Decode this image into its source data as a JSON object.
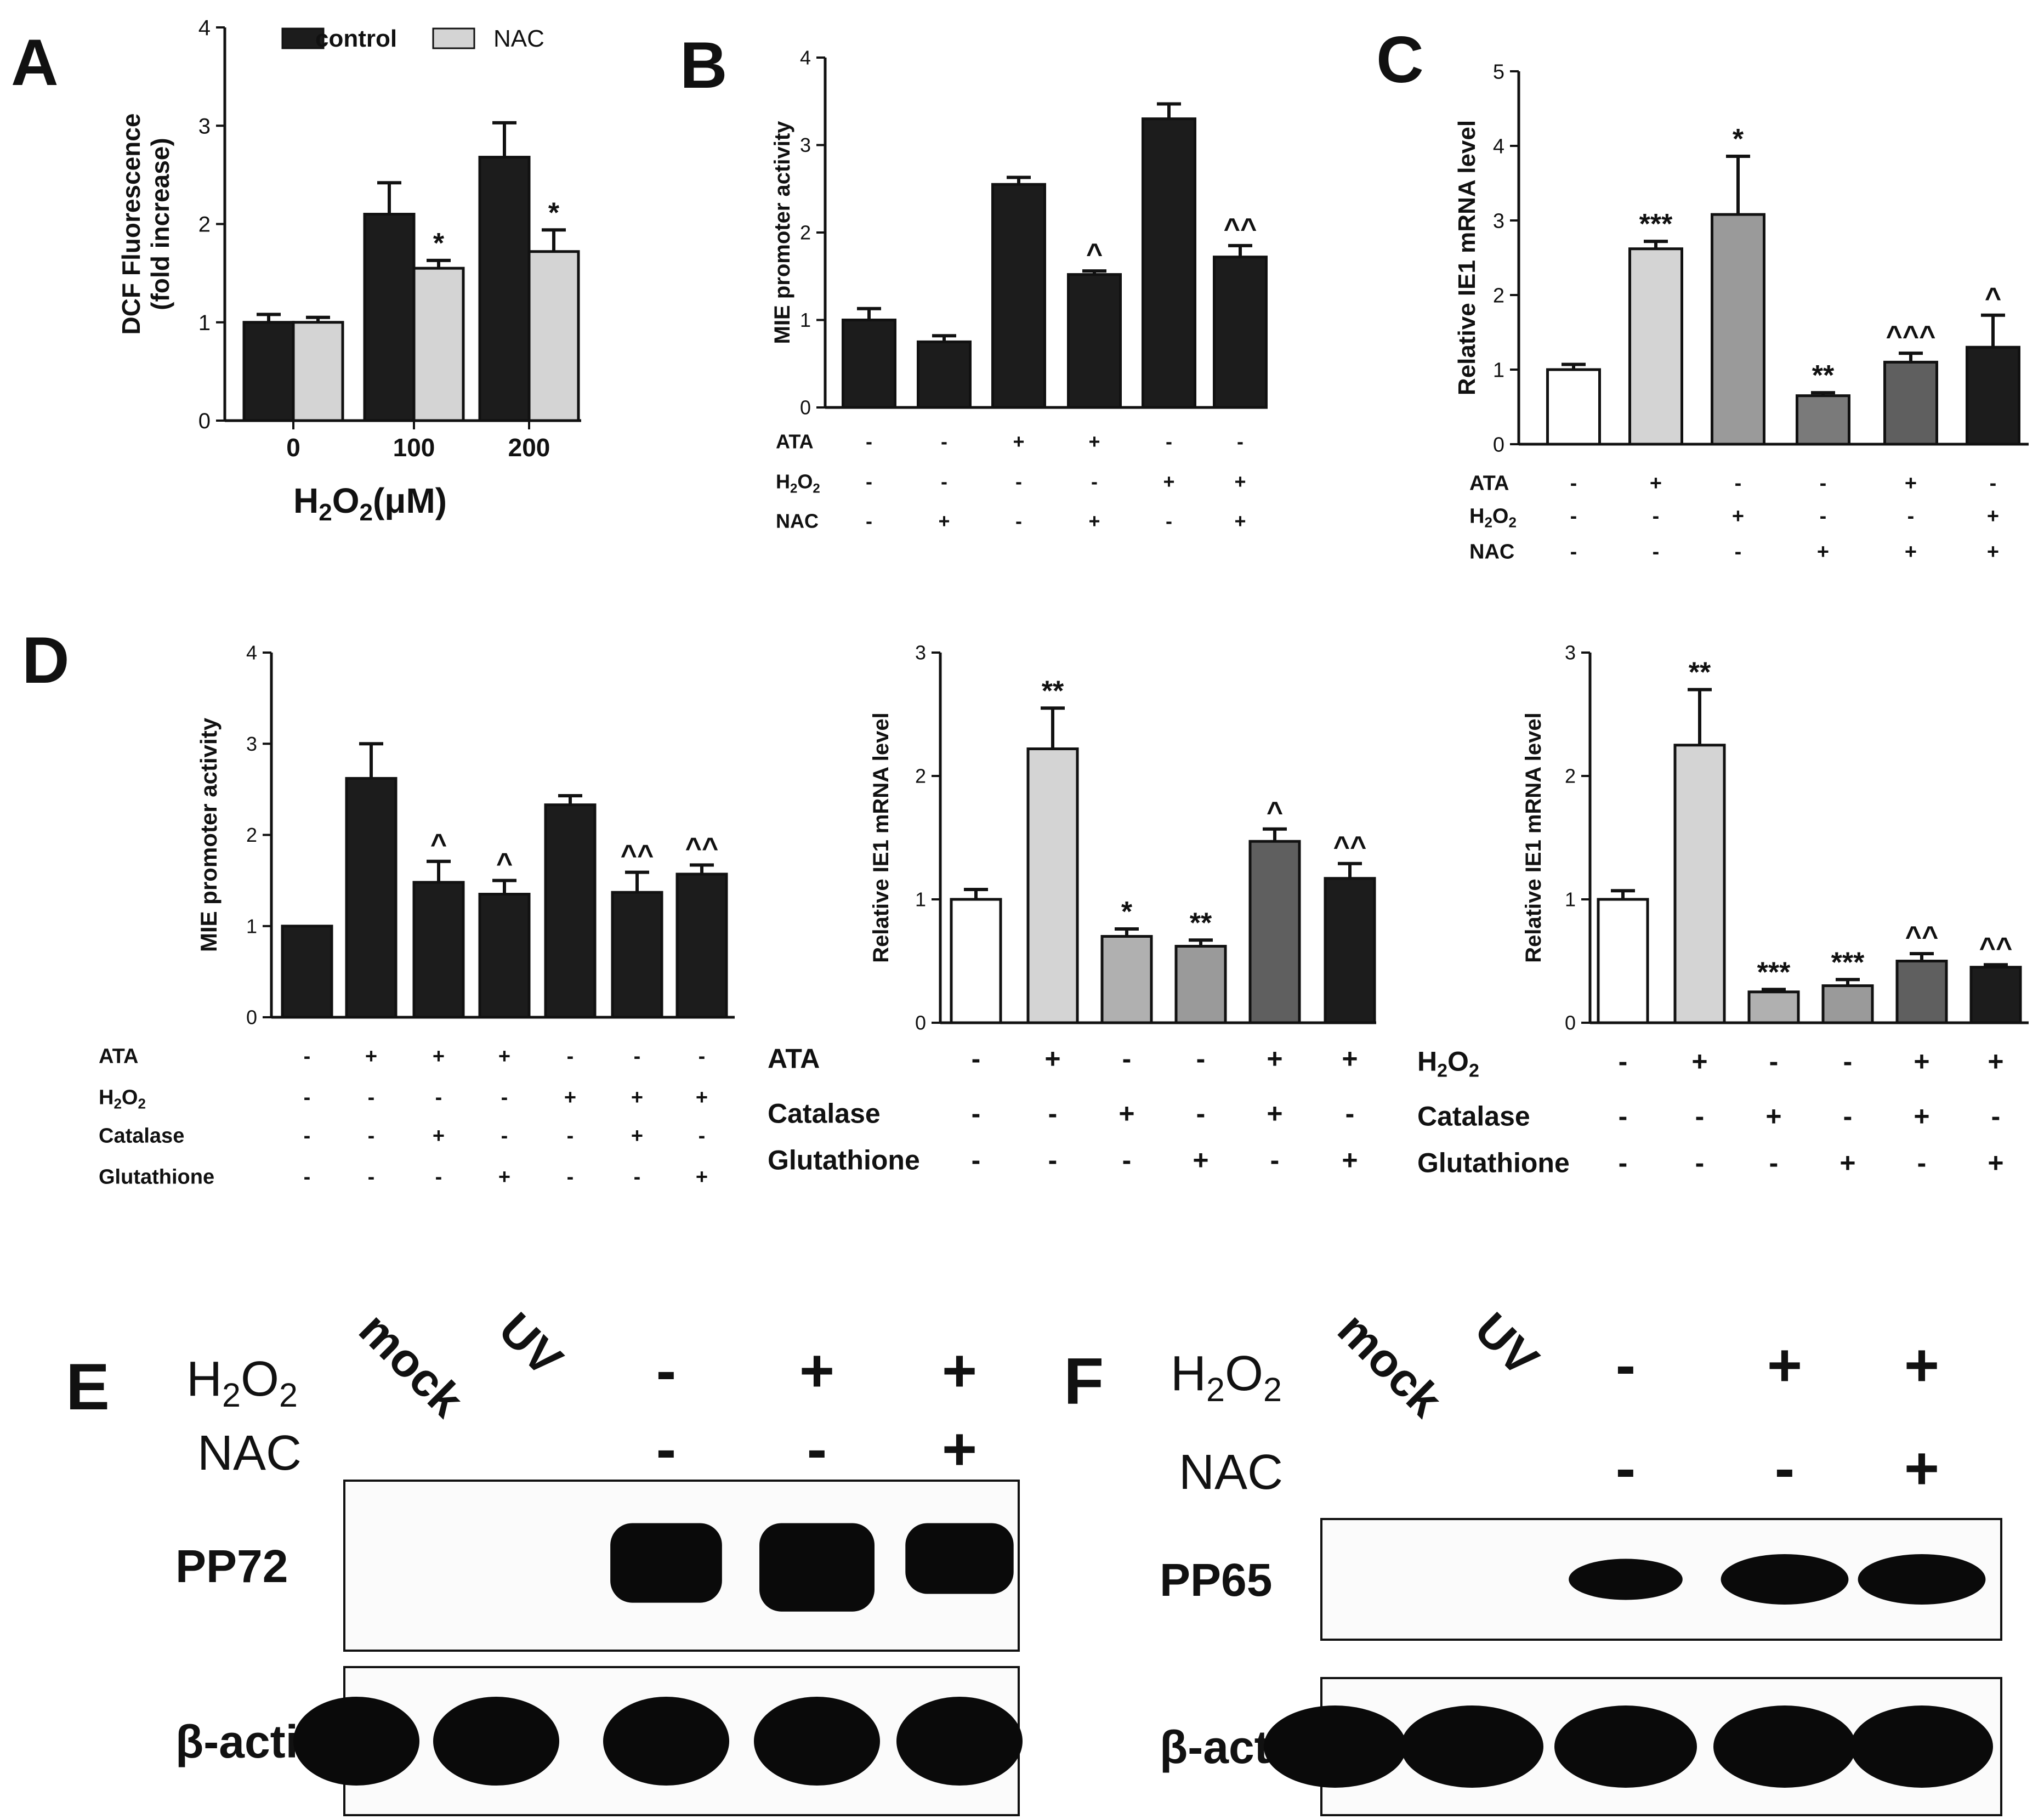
{
  "panels": {
    "A": "A",
    "B": "B",
    "C": "C",
    "D": "D",
    "E": "E",
    "F": "F"
  },
  "legend": {
    "control": "control",
    "nac": "NAC"
  },
  "colors": {
    "black": "#1c1c1c",
    "light_gray": "#d4d4d4",
    "mid_gray": "#b0b0b0",
    "gray": "#9a9a9a",
    "dark_gray": "#5f5f5f",
    "white": "#ffffff",
    "gel_bg": "#fbfbfb"
  },
  "chart_data": [
    {
      "id": "A",
      "type": "bar",
      "ylabel": [
        "DCF Fluorescence",
        "(fold increase)"
      ],
      "xlabel": "H2O2(μM)",
      "xlabel_main": "H",
      "xlabel_sub": "2",
      "xlabel_rest": "O",
      "xlabel_sub2": "2",
      "xlabel_end": "(μM)",
      "ylim": [
        0,
        4
      ],
      "yticks": [
        "0",
        "1",
        "2",
        "3",
        "4"
      ],
      "categories": [
        "0",
        "100",
        "200"
      ],
      "series": [
        {
          "name": "control",
          "values": [
            1.0,
            2.1,
            2.68
          ],
          "errors": [
            0.08,
            0.32,
            0.35
          ],
          "color": "#1c1c1c",
          "marks": [
            "",
            "",
            ""
          ]
        },
        {
          "name": "NAC",
          "values": [
            1.0,
            1.55,
            1.72
          ],
          "errors": [
            0.05,
            0.08,
            0.22
          ],
          "color": "#d4d4d4",
          "marks": [
            "",
            "*",
            "*"
          ]
        }
      ]
    },
    {
      "id": "B",
      "type": "bar",
      "ylabel": "MIE promoter activity",
      "ylim": [
        0,
        4
      ],
      "yticks": [
        "0",
        "1",
        "2",
        "3",
        "4"
      ],
      "values": [
        1.0,
        0.75,
        2.55,
        1.52,
        3.3,
        1.72
      ],
      "errors": [
        0.13,
        0.07,
        0.08,
        0.04,
        0.17,
        0.13
      ],
      "colors": [
        "#1c1c1c",
        "#1c1c1c",
        "#1c1c1c",
        "#1c1c1c",
        "#1c1c1c",
        "#1c1c1c"
      ],
      "marks": [
        "",
        "",
        "",
        "^",
        "",
        "^^"
      ],
      "conditions": [
        {
          "label": "ATA",
          "signs": [
            "-",
            "-",
            "+",
            "+",
            "-",
            "-"
          ]
        },
        {
          "label": "H2O2",
          "signs": [
            "-",
            "-",
            "-",
            "-",
            "+",
            "+"
          ]
        },
        {
          "label": "NAC",
          "signs": [
            "-",
            "+",
            "-",
            "+",
            "-",
            "+"
          ]
        }
      ]
    },
    {
      "id": "C",
      "type": "bar",
      "ylabel": "Relative IE1 mRNA level",
      "ylim": [
        0,
        5
      ],
      "yticks": [
        "0",
        "1",
        "2",
        "3",
        "4",
        "5"
      ],
      "values": [
        1.0,
        2.62,
        3.08,
        0.65,
        1.1,
        1.3
      ],
      "errors": [
        0.07,
        0.1,
        0.78,
        0.04,
        0.12,
        0.43
      ],
      "colors": [
        "#ffffff",
        "#d4d4d4",
        "#9a9a9a",
        "#7a7a7a",
        "#5f5f5f",
        "#1c1c1c"
      ],
      "marks": [
        "",
        "***",
        "*",
        "**",
        "^^^",
        "^"
      ],
      "conditions": [
        {
          "label": "ATA",
          "signs": [
            "-",
            "+",
            "-",
            "-",
            "+",
            "-"
          ]
        },
        {
          "label": "H2O2",
          "signs": [
            "-",
            "-",
            "+",
            "-",
            "-",
            "+"
          ]
        },
        {
          "label": "NAC",
          "signs": [
            "-",
            "-",
            "-",
            "+",
            "+",
            "+"
          ]
        }
      ]
    },
    {
      "id": "D1",
      "type": "bar",
      "ylabel": "MIE promoter activity",
      "ylim": [
        0,
        4
      ],
      "yticks": [
        "0",
        "1",
        "2",
        "3",
        "4"
      ],
      "values": [
        1.0,
        2.62,
        1.48,
        1.35,
        2.33,
        1.37,
        1.57
      ],
      "errors": [
        0.0,
        0.38,
        0.23,
        0.15,
        0.1,
        0.22,
        0.1
      ],
      "colors": [
        "#1c1c1c",
        "#1c1c1c",
        "#1c1c1c",
        "#1c1c1c",
        "#1c1c1c",
        "#1c1c1c",
        "#1c1c1c"
      ],
      "marks": [
        "",
        "",
        "^",
        "^",
        "",
        "^^",
        "^^"
      ],
      "conditions": [
        {
          "label": "ATA",
          "signs": [
            "-",
            "+",
            "+",
            "+",
            "-",
            "-",
            "-"
          ]
        },
        {
          "label": "H2O2",
          "signs": [
            "-",
            "-",
            "-",
            "-",
            "+",
            "+",
            "+"
          ]
        },
        {
          "label": "Catalase",
          "signs": [
            "-",
            "-",
            "+",
            "-",
            "-",
            "+",
            "-"
          ]
        },
        {
          "label": "Glutathione",
          "signs": [
            "-",
            "-",
            "-",
            "+",
            "-",
            "-",
            "+"
          ]
        }
      ]
    },
    {
      "id": "D2",
      "type": "bar",
      "ylabel": "Relative IE1 mRNA level",
      "ylim": [
        0,
        3
      ],
      "yticks": [
        "0",
        "1",
        "2",
        "3"
      ],
      "values": [
        1.0,
        2.22,
        0.7,
        0.62,
        1.47,
        1.17
      ],
      "errors": [
        0.08,
        0.33,
        0.06,
        0.05,
        0.1,
        0.12
      ],
      "colors": [
        "#ffffff",
        "#d4d4d4",
        "#b0b0b0",
        "#9a9a9a",
        "#5f5f5f",
        "#1c1c1c"
      ],
      "marks": [
        "",
        "**",
        "*",
        "**",
        "^",
        "^^"
      ],
      "conditions": [
        {
          "label": "ATA",
          "signs": [
            "-",
            "+",
            "-",
            "-",
            "+",
            "+"
          ]
        },
        {
          "label": "Catalase",
          "signs": [
            "-",
            "-",
            "+",
            "-",
            "+",
            "-"
          ]
        },
        {
          "label": "Glutathione",
          "signs": [
            "-",
            "-",
            "-",
            "+",
            "-",
            "+"
          ]
        }
      ]
    },
    {
      "id": "D3",
      "type": "bar",
      "ylabel": "Relative IE1 mRNA level",
      "ylim": [
        0,
        3
      ],
      "yticks": [
        "0",
        "1",
        "2",
        "3"
      ],
      "values": [
        1.0,
        2.25,
        0.25,
        0.3,
        0.5,
        0.45
      ],
      "errors": [
        0.07,
        0.45,
        0.02,
        0.05,
        0.06,
        0.02
      ],
      "colors": [
        "#ffffff",
        "#d4d4d4",
        "#b0b0b0",
        "#9a9a9a",
        "#5f5f5f",
        "#1c1c1c"
      ],
      "marks": [
        "",
        "**",
        "***",
        "***",
        "^^",
        "^^"
      ],
      "conditions": [
        {
          "label": "H2O2",
          "signs": [
            "-",
            "+",
            "-",
            "-",
            "+",
            "+"
          ]
        },
        {
          "label": "Catalase",
          "signs": [
            "-",
            "-",
            "+",
            "-",
            "+",
            "-"
          ]
        },
        {
          "label": "Glutathione",
          "signs": [
            "-",
            "-",
            "-",
            "+",
            "-",
            "+"
          ]
        }
      ]
    }
  ],
  "blots": {
    "E": {
      "h2o2": "H2O2",
      "nac": "NAC",
      "lanes": [
        "mock",
        "UV"
      ],
      "h2o2_signs": [
        "-",
        "+",
        "+"
      ],
      "nac_signs": [
        "-",
        "-",
        "+"
      ],
      "target": "PP72",
      "loading": "β-actin",
      "target_intensity": [
        0,
        0,
        0.9,
        1.0,
        0.8
      ],
      "loading_intensity": [
        1,
        1,
        1,
        1,
        1
      ]
    },
    "F": {
      "h2o2": "H2O2",
      "nac": "NAC",
      "lanes": [
        "mock",
        "UV"
      ],
      "h2o2_signs": [
        "-",
        "+",
        "+"
      ],
      "nac_signs": [
        "-",
        "-",
        "+"
      ],
      "target": "PP65",
      "loading": "β-actin",
      "target_intensity": [
        0,
        0,
        0.55,
        0.9,
        0.9
      ],
      "loading_intensity": [
        1,
        1,
        1,
        1,
        1
      ]
    }
  }
}
